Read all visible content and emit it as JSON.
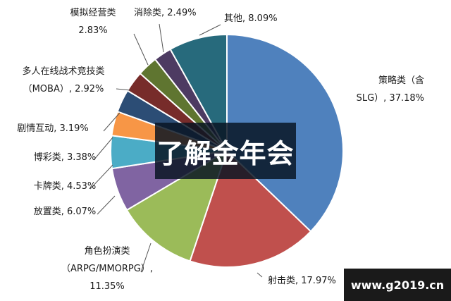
{
  "chart_data": {
    "type": "pie",
    "title": "",
    "slices": [
      {
        "label": "策略类（含SLG）",
        "value": 37.18,
        "color": "#4F81BD",
        "text_lines": [
          "策略类（含",
          "SLG）, 37.18%"
        ]
      },
      {
        "label": "射击类",
        "value": 17.97,
        "color": "#C0504D",
        "text_lines": [
          "射击类, 17.97%"
        ]
      },
      {
        "label": "角色扮演类（ARPG/MMORPG）",
        "value": 11.35,
        "color": "#9BBB59",
        "text_lines": [
          "角色扮演类",
          "（ARPG/MMORPG）,",
          "11.35%"
        ]
      },
      {
        "label": "放置类",
        "value": 6.07,
        "color": "#8064A2",
        "text_lines": [
          "放置类, 6.07%"
        ]
      },
      {
        "label": "卡牌类",
        "value": 4.53,
        "color": "#4BACC6",
        "text_lines": [
          "卡牌类, 4.53%"
        ]
      },
      {
        "label": "博彩类",
        "value": 3.38,
        "color": "#F79646",
        "text_lines": [
          "博彩类, 3.38%"
        ]
      },
      {
        "label": "剧情互动",
        "value": 3.19,
        "color": "#2C4D75",
        "text_lines": [
          "剧情互动, 3.19%"
        ]
      },
      {
        "label": "多人在线战术竞技类（MOBA）",
        "value": 2.92,
        "color": "#772C2A",
        "text_lines": [
          "多人在线战术竞技类",
          "（MOBA）, 2.92%"
        ]
      },
      {
        "label": "模拟经营类",
        "value": 2.83,
        "color": "#5F7530",
        "text_lines": [
          "模拟经营类",
          "2.83%"
        ]
      },
      {
        "label": "消除类",
        "value": 2.49,
        "color": "#4D3B62",
        "text_lines": [
          "消除类, 2.49%"
        ]
      },
      {
        "label": "其他",
        "value": 8.09,
        "color": "#276A7C",
        "text_lines": [
          "其他, 8.09%"
        ]
      }
    ]
  },
  "overlay": {
    "text": "了解金年会"
  },
  "watermark": {
    "text": "www.g2019.cn"
  }
}
